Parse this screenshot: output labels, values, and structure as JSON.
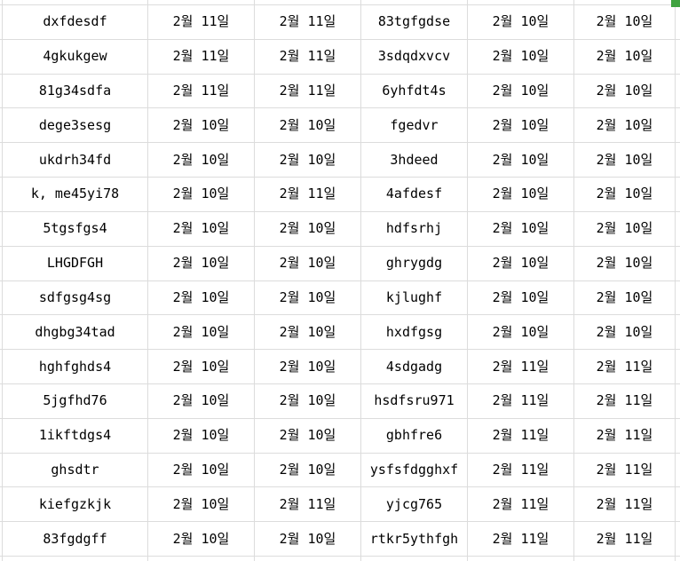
{
  "table": {
    "rows": [
      [
        "dxfdesdf",
        "2월 11일",
        "2월 11일",
        "83tgfgdse",
        "2월 10일",
        "2월 10일"
      ],
      [
        "4gkukgew",
        "2월 11일",
        "2월 11일",
        "3sdqdxvcv",
        "2월 10일",
        "2월 10일"
      ],
      [
        "81g34sdfa",
        "2월 11일",
        "2월 11일",
        "6yhfdt4s",
        "2월 10일",
        "2월 10일"
      ],
      [
        "dege3sesg",
        "2월 10일",
        "2월 10일",
        "fgedvr",
        "2월 10일",
        "2월 10일"
      ],
      [
        "ukdrh34fd",
        "2월 10일",
        "2월 10일",
        "3hdeed",
        "2월 10일",
        "2월 10일"
      ],
      [
        "k, me45yi78",
        "2월 10일",
        "2월 11일",
        "4afdesf",
        "2월 10일",
        "2월 10일"
      ],
      [
        "5tgsfgs4",
        "2월 10일",
        "2월 10일",
        "hdfsrhj",
        "2월 10일",
        "2월 10일"
      ],
      [
        "LHGDFGH",
        "2월 10일",
        "2월 10일",
        "ghrygdg",
        "2월 10일",
        "2월 10일"
      ],
      [
        "sdfgsg4sg",
        "2월 10일",
        "2월 10일",
        "kjlughf",
        "2월 10일",
        "2월 10일"
      ],
      [
        "dhgbg34tad",
        "2월 10일",
        "2월 10일",
        "hxdfgsg",
        "2월 10일",
        "2월 10일"
      ],
      [
        "hghfghds4",
        "2월 10일",
        "2월 10일",
        "4sdgadg",
        "2월 11일",
        "2월 11일"
      ],
      [
        "5jgfhd76",
        "2월 10일",
        "2월 10일",
        "hsdfsru971",
        "2월 11일",
        "2월 11일"
      ],
      [
        "1ikftdgs4",
        "2월 10일",
        "2월 10일",
        "gbhfre6",
        "2월 11일",
        "2월 11일"
      ],
      [
        "ghsdtr",
        "2월 10일",
        "2월 10일",
        "ysfsfdgghxf",
        "2월 11일",
        "2월 11일"
      ],
      [
        "kiefgzkjk",
        "2월 10일",
        "2월 11일",
        "yjcg765",
        "2월 11일",
        "2월 11일"
      ],
      [
        "83fgdgff",
        "2월 10일",
        "2월 10일",
        "rtkr5ythfgh",
        "2월 11일",
        "2월 11일"
      ]
    ]
  },
  "colors": {
    "gridline": "#dcdcdc",
    "cell_background": "#ffffff",
    "text": "#000000",
    "selection_green": "#3fa33f"
  }
}
